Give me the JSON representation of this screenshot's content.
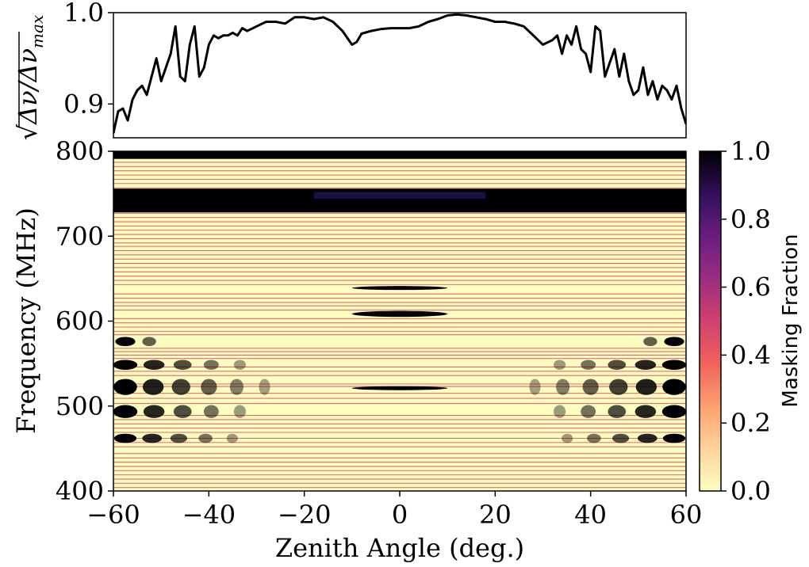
{
  "chart_data": [
    {
      "type": "line",
      "ylabel": "√Δν/Δν_max",
      "ylabel_parts": {
        "root": "√",
        "main": "Δν/Δν",
        "sub": "max"
      },
      "xlim": [
        -60,
        60
      ],
      "ylim": [
        0.863,
        1.0
      ],
      "yticks": [
        0.9,
        1.0
      ],
      "ytick_labels": [
        "0.9",
        "1.0"
      ],
      "series": [
        {
          "x": [
            -60,
            -59,
            -58,
            -57,
            -56,
            -55,
            -54,
            -53,
            -52,
            -51,
            -50,
            -49,
            -48,
            -47,
            -46,
            -45,
            -44,
            -43,
            -42,
            -41,
            -40,
            -39,
            -38,
            -37,
            -36,
            -35,
            -34,
            -33,
            -32,
            -30,
            -28,
            -26,
            -24,
            -22,
            -20,
            -18,
            -16,
            -14,
            -12,
            -10,
            -9,
            -8,
            -6,
            -4,
            -2,
            0,
            2,
            4,
            6,
            8,
            10,
            12,
            14,
            16,
            18,
            20,
            22,
            24,
            26,
            28,
            30,
            32,
            33,
            34,
            35,
            36,
            37,
            38,
            39,
            40,
            41,
            42,
            43,
            44,
            45,
            46,
            47,
            48,
            49,
            50,
            51,
            52,
            53,
            54,
            55,
            56,
            57,
            58,
            59,
            60
          ],
          "y": [
            0.868,
            0.892,
            0.895,
            0.882,
            0.905,
            0.915,
            0.92,
            0.91,
            0.93,
            0.95,
            0.925,
            0.94,
            0.955,
            0.985,
            0.93,
            0.925,
            0.965,
            0.985,
            0.93,
            0.94,
            0.965,
            0.975,
            0.972,
            0.975,
            0.975,
            0.978,
            0.975,
            0.983,
            0.98,
            0.985,
            0.99,
            0.99,
            0.988,
            0.995,
            0.995,
            0.993,
            0.995,
            0.99,
            0.98,
            0.965,
            0.968,
            0.977,
            0.98,
            0.982,
            0.983,
            0.983,
            0.983,
            0.985,
            0.99,
            0.993,
            0.997,
            0.998,
            0.997,
            0.995,
            0.993,
            0.99,
            0.99,
            0.988,
            0.985,
            0.975,
            0.965,
            0.97,
            0.975,
            0.955,
            0.975,
            0.965,
            0.985,
            0.96,
            0.955,
            0.935,
            0.985,
            0.98,
            0.93,
            0.945,
            0.96,
            0.93,
            0.955,
            0.925,
            0.91,
            0.915,
            0.94,
            0.91,
            0.925,
            0.905,
            0.92,
            0.915,
            0.905,
            0.92,
            0.895,
            0.878
          ]
        }
      ]
    },
    {
      "type": "heatmap",
      "xlabel": "Zenith Angle (deg.)",
      "ylabel": "Frequency (MHz)",
      "xlim": [
        -60,
        60
      ],
      "ylim": [
        400,
        800
      ],
      "xticks": [
        -60,
        -40,
        -20,
        0,
        20,
        40,
        60
      ],
      "xtick_labels": [
        "−60",
        "−40",
        "−20",
        "0",
        "20",
        "40",
        "60"
      ],
      "yticks": [
        400,
        500,
        600,
        700,
        800
      ],
      "ytick_labels": [
        "400",
        "500",
        "600",
        "700",
        "800"
      ],
      "colorbar": {
        "label": "Masking Fraction",
        "range": [
          0.0,
          1.0
        ],
        "ticks": [
          0.0,
          0.2,
          0.4,
          0.6,
          0.8,
          1.0
        ],
        "tick_labels": [
          "0.0",
          "0.2",
          "0.4",
          "0.6",
          "0.8",
          "1.0"
        ],
        "colormap": "magma_r"
      },
      "colors": {
        "low": "#fcfdbf",
        "band_line": "#e0506a",
        "high": "#000004",
        "mid": "#3b0f70"
      },
      "full_width_masked_bands": [
        [
          728,
          756
        ],
        [
          791,
          800
        ]
      ],
      "center_masked_bands": [
        {
          "f": [
            605,
            612
          ],
          "z": [
            -10,
            10
          ]
        },
        {
          "f": [
            637,
            641
          ],
          "z": [
            -10,
            10
          ]
        },
        {
          "f": [
            519,
            523
          ],
          "z": [
            -10,
            10
          ]
        }
      ],
      "edge_masked_bands": [
        {
          "f": [
            570,
            582
          ],
          "z_extent": 10
        },
        {
          "f": [
            542,
            555
          ],
          "z_extent": 30
        },
        {
          "f": [
            512,
            533
          ],
          "z_extent": 35
        },
        {
          "f": [
            485,
            502
          ],
          "z_extent": 30
        },
        {
          "f": [
            456,
            468
          ],
          "z_extent": 28
        }
      ],
      "horizontal_lines_mhz": [
        404,
        409,
        414,
        419,
        424,
        429,
        434,
        439,
        444,
        452,
        457,
        462,
        469,
        474,
        479,
        484,
        489,
        503,
        509,
        515,
        523,
        526,
        536,
        541,
        546,
        556,
        560,
        564,
        568,
        584,
        588,
        593,
        598,
        603,
        613,
        618,
        622,
        627,
        632,
        643,
        648,
        653,
        658,
        663,
        668,
        673,
        678,
        683,
        688,
        692,
        697,
        702,
        707,
        712,
        717,
        722,
        727,
        757,
        762,
        767,
        772,
        777,
        782,
        787
      ]
    }
  ]
}
